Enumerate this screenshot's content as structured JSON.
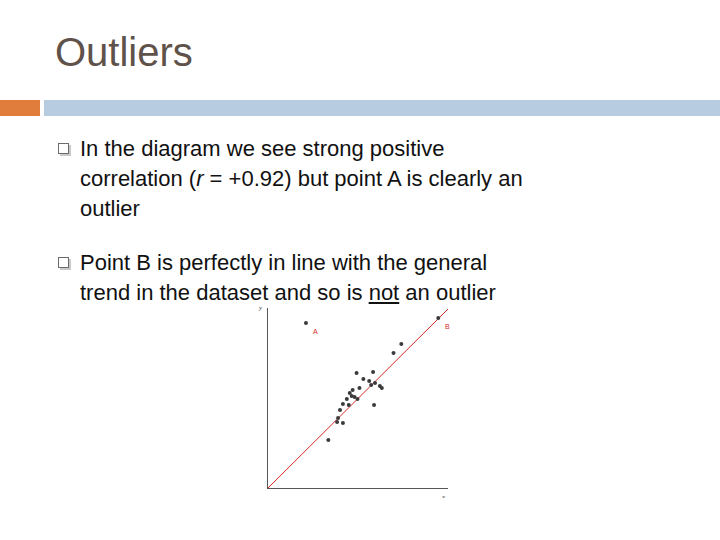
{
  "slide": {
    "title": "Outliers",
    "bullets": [
      [
        [
          {
            "text": "In the diagram we see strong positive"
          }
        ],
        [
          {
            "text": "correlation ("
          },
          {
            "text": "r",
            "style": "italic"
          },
          {
            "text": " = +0.92) but point A is clearly an"
          }
        ],
        [
          {
            "text": "outlier"
          }
        ]
      ],
      [
        [
          {
            "text": "Point B is perfectly in line with the general"
          }
        ],
        [
          {
            "text": "trend in the dataset and so is "
          },
          {
            "text": "not",
            "style": "underline"
          },
          {
            "text": " an outlier"
          }
        ]
      ]
    ]
  },
  "chart_data": {
    "type": "scatter",
    "x_label": "x",
    "y_label": "y",
    "x": [
      3.9,
      17.5,
      13.7,
      12.9,
      10.8,
      9.1,
      10.4,
      11.0,
      11.7,
      10.6,
      9.4,
      8.7,
      8.4,
      8.9,
      9.2,
      8.1,
      8.6,
      7.7,
      8.3,
      7.4,
      7.2,
      7.7,
      7.1,
      6.2,
      10.9,
      9.8,
      11.5
    ],
    "values": [
      16.5,
      17.0,
      14.4,
      13.5,
      11.6,
      11.5,
      10.7,
      10.5,
      10.0,
      10.3,
      10.0,
      9.8,
      9.5,
      9.1,
      8.9,
      8.9,
      9.2,
      8.4,
      8.3,
      7.8,
      7.0,
      6.5,
      6.6,
      4.8,
      8.3,
      10.9,
      10.2
    ],
    "color": "#3a3a3a",
    "trend_line": {
      "x": [
        0,
        18.5
      ],
      "values": [
        0,
        17.9
      ],
      "color": "#d42a2a"
    },
    "annotations": [
      {
        "text": "A",
        "x": 3.9,
        "y": 16.5,
        "color": "#d42a2a"
      },
      {
        "text": "B",
        "x": 17.5,
        "y": 17.0,
        "color": "#d42a2a"
      }
    ],
    "xlim": [
      0,
      18.5
    ],
    "ylim": [
      0,
      18
    ],
    "tick_labels": false,
    "grid": false
  }
}
